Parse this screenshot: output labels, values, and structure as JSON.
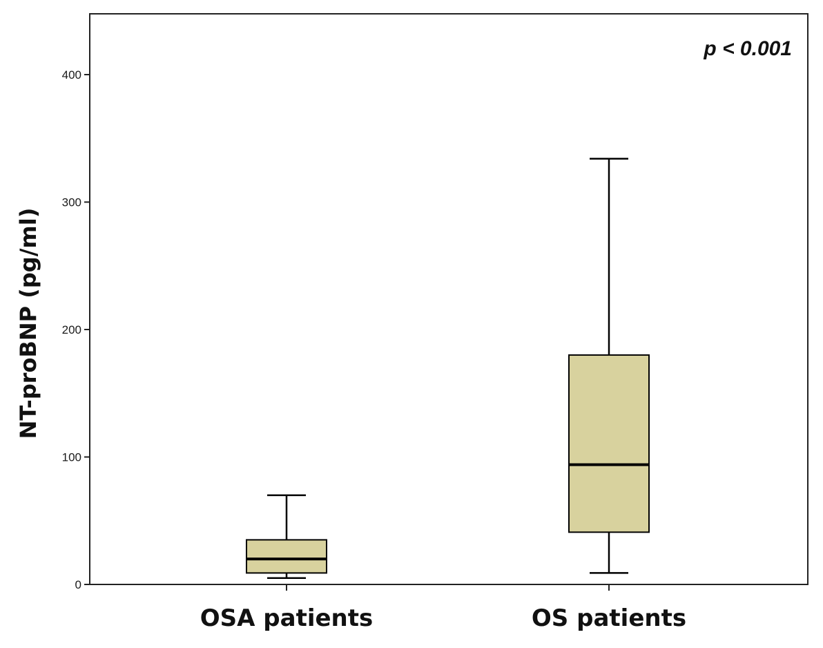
{
  "chart_data": {
    "type": "boxplot",
    "title": "",
    "xlabel": "",
    "ylabel": "NT-proBNP (pg/ml)",
    "ylim": [
      0,
      450
    ],
    "yticks": [
      0,
      100,
      200,
      300,
      400
    ],
    "ytick_labels": [
      "0",
      "100",
      "200",
      "300",
      "400"
    ],
    "grid": false,
    "annotation": "p < 0.001",
    "box_color": "#d8d29e",
    "line_color": "#000000",
    "categories": [
      "OSA patients",
      "OS patients"
    ],
    "boxes": [
      {
        "name": "OSA patients",
        "whisker_low": 5,
        "q1": 9,
        "median": 20,
        "q3": 35,
        "whisker_high": 70
      },
      {
        "name": "OS patients",
        "whisker_low": 9,
        "q1": 41,
        "median": 94,
        "q3": 180,
        "whisker_high": 334
      }
    ]
  }
}
